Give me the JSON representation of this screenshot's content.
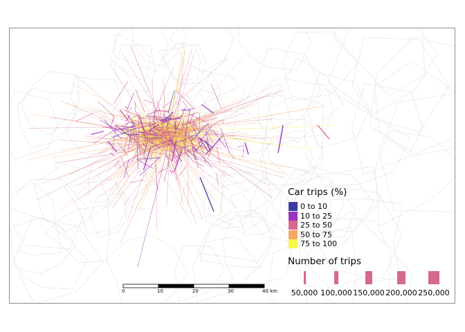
{
  "legend": {
    "car_title": "Car trips (%)",
    "classes": [
      {
        "label": "0 to 10",
        "color": "#3b3ba0"
      },
      {
        "label": "10 to 25",
        "color": "#9b33c2"
      },
      {
        "label": "25 to 50",
        "color": "#d4688d"
      },
      {
        "label": "50 to 75",
        "color": "#f6a865"
      },
      {
        "label": "75 to 100",
        "color": "#f7f74a"
      }
    ],
    "trips_title": "Number of trips",
    "trip_sizes": [
      "50,000",
      "100,000",
      "150,000",
      "200,000",
      "250,000"
    ],
    "trip_bar_color": "#d4688d"
  },
  "scalebar": {
    "ticks": [
      "0",
      "10",
      "20",
      "30",
      "40 km"
    ]
  },
  "colors": {
    "boundary": "#e2e2e2",
    "frame": "#8c8c8c"
  }
}
